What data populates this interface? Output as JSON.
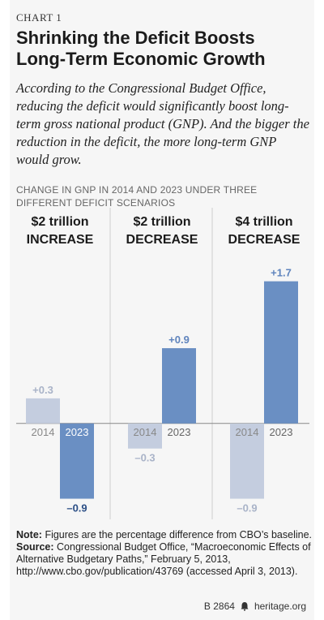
{
  "kicker": "CHART 1",
  "title": "Shrinking the Deficit Boosts Long-Term Economic Growth",
  "subtitle": "According to the Congressional Budget Office, reducing the deficit would significantly boost long-term gross national product (GNP). And the bigger the reduction in the deficit, the more long-term GNP would grow.",
  "chart_heading": "CHANGE IN GNP IN 2014 AND 2023 UNDER THREE DIFFERENT DEFICIT SCENARIOS",
  "note_label": "Note:",
  "note_text": "Figures are the percentage difference from CBO’s baseline.",
  "source_label": "Source:",
  "source_text": "Congressional Budget Office, “Macroeconomic Effects of Alternative Budgetary Paths,” February 5, 2013, http://www.cbo.gov/publication/43769 (accessed April 3, 2013).",
  "footer_code": "B 2864",
  "footer_site": "heritage.org",
  "colors": {
    "bar_2014": "#c4cddf",
    "bar_2023": "#6a8fc3",
    "label_2014": "#a9b3c8",
    "label_2023": "#5f84bd",
    "neg_label_2023": "#2c4f86",
    "divider": "#dcdcdc",
    "axis": "#888888"
  },
  "chart_data": {
    "type": "bar",
    "units": "percent difference from CBO baseline",
    "ylim": [
      -1.05,
      1.9
    ],
    "series_years": [
      "2014",
      "2023"
    ],
    "panels": [
      {
        "title_line1": "$2 trillion",
        "title_line2": "INCREASE",
        "values": [
          0.3,
          -0.9
        ],
        "labels": [
          "+0.3",
          "–0.9"
        ]
      },
      {
        "title_line1": "$2 trillion",
        "title_line2": "DECREASE",
        "values": [
          -0.3,
          0.9
        ],
        "labels": [
          "–0.3",
          "+0.9"
        ]
      },
      {
        "title_line1": "$4 trillion",
        "title_line2": "DECREASE",
        "values": [
          -0.9,
          1.7
        ],
        "labels": [
          "–0.9",
          "+1.7"
        ]
      }
    ]
  }
}
